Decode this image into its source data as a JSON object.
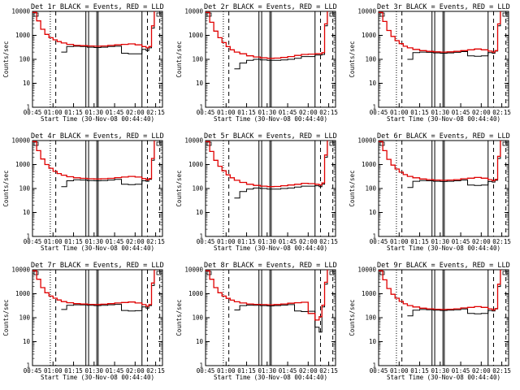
{
  "colors": {
    "events": "#000000",
    "lld": "#e00000",
    "background": "#ffffff"
  },
  "chart_data": {
    "type": "line",
    "grid": false,
    "y_scale": "log",
    "ylim": [
      1,
      10000
    ],
    "xlim": [
      "00:45",
      "02:20"
    ],
    "x_tick_labels": [
      "00:45",
      "01:00",
      "01:15",
      "01:30",
      "01:45",
      "02:00",
      "02:15"
    ],
    "y_tick_labels": [
      "1",
      "10",
      "100",
      "1000",
      "10000"
    ],
    "ylabel": "Counts/sec",
    "xlabel": "Start Time (30-Nov-08 00:44:40)",
    "series_names": [
      "Events",
      "LLD"
    ],
    "markers": {
      "dotted": [
        "00:58"
      ],
      "dashed": [
        "01:02",
        "02:09",
        "02:18",
        "02:20"
      ],
      "solid": [
        "01:24",
        "01:26",
        "01:32",
        "01:33",
        "02:05"
      ]
    },
    "panels": [
      {
        "title": "Det 1r  BLACK = Events, RED = LLD",
        "x": [
          "00:45",
          "00:48",
          "00:51",
          "00:54",
          "00:57",
          "01:00",
          "01:03",
          "01:06",
          "01:10",
          "01:15",
          "01:20",
          "01:25",
          "01:30",
          "01:35",
          "01:40",
          "01:45",
          "01:50",
          "01:55",
          "02:00",
          "02:05",
          "02:08",
          "02:10",
          "02:12",
          "02:14",
          "02:16",
          "02:18",
          "02:20"
        ],
        "series": [
          {
            "name": "Events",
            "values": [
              null,
              null,
              null,
              null,
              null,
              null,
              null,
              200,
              340,
              350,
              340,
              320,
              310,
              320,
              340,
              350,
              180,
              170,
              170,
              260,
              230,
              300,
              2000,
              12000,
              null,
              null,
              null
            ]
          },
          {
            "name": "LLD",
            "values": [
              9000,
              4000,
              1800,
              1100,
              800,
              650,
              550,
              480,
              420,
              380,
              370,
              360,
              350,
              360,
              380,
              400,
              420,
              440,
              400,
              340,
              300,
              340,
              2500,
              12000,
              null,
              null,
              null
            ]
          }
        ]
      },
      {
        "title": "Det 2r  BLACK = Events, RED = LLD",
        "x": [
          "00:45",
          "00:48",
          "00:51",
          "00:54",
          "00:57",
          "01:00",
          "01:03",
          "01:06",
          "01:10",
          "01:15",
          "01:20",
          "01:25",
          "01:30",
          "01:35",
          "01:40",
          "01:45",
          "01:50",
          "01:55",
          "02:00",
          "02:05",
          "02:08",
          "02:10",
          "02:12",
          "02:14",
          "02:16",
          "02:18",
          "02:20"
        ],
        "series": [
          {
            "name": "Events",
            "values": [
              null,
              null,
              null,
              null,
              null,
              null,
              null,
              40,
              70,
              90,
              100,
              95,
              90,
              90,
              95,
              100,
              110,
              130,
              130,
              150,
              150,
              160,
              2500,
              12000,
              null,
              null,
              null
            ]
          },
          {
            "name": "LLD",
            "values": [
              9000,
              3500,
              1500,
              800,
              500,
              340,
              250,
              200,
              170,
              140,
              125,
              115,
              110,
              112,
              120,
              130,
              145,
              160,
              165,
              170,
              170,
              190,
              3000,
              12000,
              null,
              null,
              null
            ]
          }
        ]
      },
      {
        "title": "Det 3r  BLACK = Events, RED = LLD",
        "x": [
          "00:45",
          "00:48",
          "00:51",
          "00:54",
          "00:57",
          "01:00",
          "01:03",
          "01:06",
          "01:10",
          "01:15",
          "01:20",
          "01:25",
          "01:30",
          "01:35",
          "01:40",
          "01:45",
          "01:50",
          "01:55",
          "02:00",
          "02:05",
          "02:08",
          "02:10",
          "02:12",
          "02:14",
          "02:16",
          "02:18",
          "02:20"
        ],
        "series": [
          {
            "name": "Events",
            "values": [
              null,
              null,
              null,
              null,
              null,
              null,
              null,
              100,
              190,
              200,
              195,
              185,
              180,
              185,
              195,
              210,
              140,
              135,
              140,
              190,
              180,
              220,
              2500,
              12000,
              null,
              null,
              null
            ]
          },
          {
            "name": "LLD",
            "values": [
              9000,
              3800,
              1600,
              900,
              600,
              450,
              350,
              300,
              260,
              230,
              215,
              205,
              200,
              205,
              215,
              230,
              250,
              270,
              250,
              220,
              200,
              230,
              3000,
              12000,
              null,
              null,
              null
            ]
          }
        ]
      },
      {
        "title": "Det 4r  BLACK = Events, RED = LLD",
        "x": [
          "00:45",
          "00:48",
          "00:51",
          "00:54",
          "00:57",
          "01:00",
          "01:03",
          "01:06",
          "01:10",
          "01:15",
          "01:20",
          "01:25",
          "01:30",
          "01:35",
          "01:40",
          "01:45",
          "01:50",
          "01:55",
          "02:00",
          "02:05",
          "02:08",
          "02:10",
          "02:12",
          "02:14",
          "02:16",
          "02:18",
          "02:20"
        ],
        "series": [
          {
            "name": "Events",
            "values": [
              null,
              null,
              null,
              null,
              null,
              null,
              null,
              120,
              210,
              230,
              225,
              215,
              210,
              215,
              225,
              240,
              150,
              145,
              150,
              210,
              200,
              240,
              1500,
              10000,
              null,
              null,
              null
            ]
          },
          {
            "name": "LLD",
            "values": [
              9000,
              3800,
              1700,
              1000,
              700,
              520,
              420,
              360,
              310,
              280,
              265,
              255,
              250,
              255,
              265,
              285,
              300,
              320,
              300,
              260,
              230,
              260,
              1800,
              10000,
              null,
              null,
              null
            ]
          }
        ]
      },
      {
        "title": "Det 5r  BLACK = Events, RED = LLD",
        "x": [
          "00:45",
          "00:48",
          "00:51",
          "00:54",
          "00:57",
          "01:00",
          "01:03",
          "01:06",
          "01:10",
          "01:15",
          "01:20",
          "01:25",
          "01:30",
          "01:35",
          "01:40",
          "01:45",
          "01:50",
          "01:55",
          "02:00",
          "02:05",
          "02:08",
          "02:10",
          "02:12",
          "02:14",
          "02:16",
          "02:18",
          "02:20"
        ],
        "series": [
          {
            "name": "Events",
            "values": [
              null,
              null,
              null,
              null,
              null,
              null,
              null,
              40,
              75,
              95,
              105,
              100,
              95,
              95,
              100,
              105,
              115,
              125,
              125,
              130,
              120,
              150,
              2000,
              11000,
              null,
              null,
              null
            ]
          },
          {
            "name": "LLD",
            "values": [
              9000,
              3500,
              1500,
              850,
              550,
              370,
              280,
              220,
              180,
              150,
              135,
              125,
              120,
              122,
              130,
              140,
              150,
              165,
              160,
              150,
              140,
              170,
              2500,
              11000,
              null,
              null,
              null
            ]
          }
        ]
      },
      {
        "title": "Det 6r  BLACK = Events, RED = LLD",
        "x": [
          "00:45",
          "00:48",
          "00:51",
          "00:54",
          "00:57",
          "01:00",
          "01:03",
          "01:06",
          "01:10",
          "01:15",
          "01:20",
          "01:25",
          "01:30",
          "01:35",
          "01:40",
          "01:45",
          "01:50",
          "01:55",
          "02:00",
          "02:05",
          "02:08",
          "02:10",
          "02:12",
          "02:14",
          "02:16",
          "02:18",
          "02:20"
        ],
        "series": [
          {
            "name": "Events",
            "values": [
              null,
              null,
              null,
              null,
              null,
              null,
              null,
              110,
              200,
              215,
              210,
              200,
              195,
              200,
              210,
              225,
              140,
              135,
              140,
              195,
              185,
              220,
              1800,
              11000,
              null,
              null,
              null
            ]
          },
          {
            "name": "LLD",
            "values": [
              9000,
              3800,
              1650,
              950,
              650,
              480,
              380,
              320,
              280,
              250,
              235,
              225,
              220,
              225,
              235,
              255,
              270,
              290,
              270,
              235,
              210,
              240,
              2200,
              11000,
              null,
              null,
              null
            ]
          }
        ]
      },
      {
        "title": "Det 7r  BLACK = Events, RED = LLD",
        "x": [
          "00:45",
          "00:48",
          "00:51",
          "00:54",
          "00:57",
          "01:00",
          "01:03",
          "01:06",
          "01:10",
          "01:15",
          "01:20",
          "01:25",
          "01:30",
          "01:35",
          "01:40",
          "01:45",
          "01:50",
          "01:55",
          "02:00",
          "02:05",
          "02:08",
          "02:10",
          "02:12",
          "02:14",
          "02:16",
          "02:18",
          "02:20"
        ],
        "series": [
          {
            "name": "Events",
            "values": [
              null,
              null,
              null,
              null,
              null,
              null,
              null,
              220,
              330,
              345,
              340,
              330,
              320,
              330,
              345,
              360,
              200,
              190,
              195,
              280,
              250,
              320,
              2200,
              11000,
              null,
              null,
              null
            ]
          },
          {
            "name": "LLD",
            "values": [
              9000,
              4000,
              1800,
              1100,
              800,
              650,
              550,
              470,
              420,
              385,
              370,
              360,
              355,
              365,
              385,
              410,
              430,
              450,
              410,
              350,
              300,
              350,
              2800,
              11000,
              null,
              null,
              null
            ]
          }
        ]
      },
      {
        "title": "Det 8r  BLACK = Events, RED = LLD",
        "x": [
          "00:45",
          "00:48",
          "00:51",
          "00:54",
          "00:57",
          "01:00",
          "01:03",
          "01:06",
          "01:10",
          "01:15",
          "01:20",
          "01:25",
          "01:30",
          "01:35",
          "01:40",
          "01:45",
          "01:50",
          "01:55",
          "02:00",
          "02:05",
          "02:08",
          "02:10",
          "02:12",
          "02:14",
          "02:16",
          "02:18",
          "02:20"
        ],
        "series": [
          {
            "name": "Events",
            "values": [
              null,
              null,
              null,
              null,
              null,
              null,
              null,
              210,
              320,
              335,
              330,
              320,
              310,
              320,
              335,
              350,
              190,
              180,
              185,
              40,
              25,
              280,
              2500,
              11000,
              null,
              null,
              null
            ]
          },
          {
            "name": "LLD",
            "values": [
              9000,
              4000,
              1800,
              1100,
              800,
              640,
              540,
              460,
              410,
              375,
              360,
              350,
              345,
              355,
              375,
              400,
              420,
              440,
              150,
              80,
              110,
              330,
              3000,
              11000,
              null,
              null,
              null
            ]
          }
        ]
      },
      {
        "title": "Det 9r  BLACK = Events, RED = LLD",
        "x": [
          "00:45",
          "00:48",
          "00:51",
          "00:54",
          "00:57",
          "01:00",
          "01:03",
          "01:06",
          "01:10",
          "01:15",
          "01:20",
          "01:25",
          "01:30",
          "01:35",
          "01:40",
          "01:45",
          "01:50",
          "01:55",
          "02:00",
          "02:05",
          "02:08",
          "02:10",
          "02:12",
          "02:14",
          "02:16",
          "02:18",
          "02:20"
        ],
        "series": [
          {
            "name": "Events",
            "values": [
              null,
              null,
              null,
              null,
              null,
              null,
              null,
              120,
              205,
              220,
              215,
              205,
              200,
              205,
              215,
              230,
              150,
              145,
              150,
              200,
              190,
              230,
              2000,
              11000,
              null,
              null,
              null
            ]
          },
          {
            "name": "LLD",
            "values": [
              9000,
              3800,
              1650,
              950,
              650,
              480,
              380,
              320,
              280,
              250,
              235,
              225,
              220,
              225,
              235,
              255,
              270,
              290,
              270,
              235,
              210,
              240,
              2500,
              11000,
              null,
              null,
              null
            ]
          }
        ]
      }
    ]
  }
}
